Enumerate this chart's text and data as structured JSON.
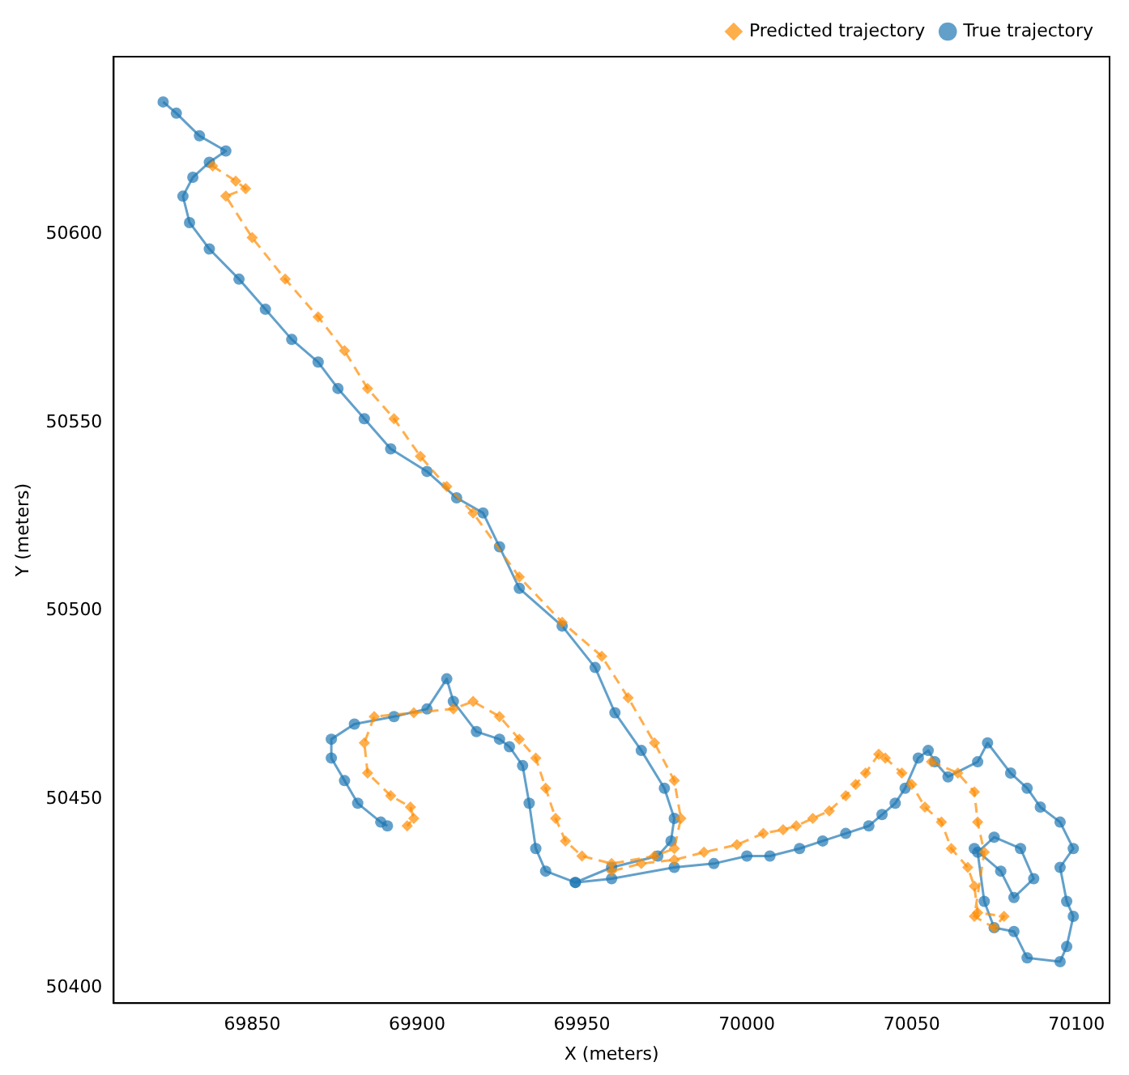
{
  "chart_data": {
    "type": "line",
    "xlabel": "X (meters)",
    "ylabel": "Y (meters)",
    "xlim": [
      69808,
      70110
    ],
    "ylim": [
      50396,
      50647
    ],
    "xticks": [
      69850,
      69900,
      69950,
      70000,
      70050,
      70100
    ],
    "yticks": [
      50400,
      50450,
      50500,
      50550,
      50600
    ],
    "grid": false,
    "legend": "top right",
    "series": [
      {
        "name": "Predicted trajectory",
        "color": "#ff8c00",
        "marker": "diamond",
        "line_style": "dashed",
        "x": [
          69838,
          69845,
          69848,
          69842,
          69850,
          69860,
          69870,
          69878,
          69885,
          69893,
          69901,
          69909,
          69917,
          69931,
          69944,
          69956,
          69964,
          69972,
          69978,
          69980,
          69978,
          69972,
          69959,
          69950,
          69945,
          69942,
          69939,
          69936,
          69931,
          69925,
          69917,
          69911,
          69899,
          69887,
          69884,
          69885,
          69892,
          69898,
          69899,
          69897,
          null,
          70056,
          70064,
          70069,
          70070,
          70072,
          70069,
          70075,
          70078,
          70070,
          70069,
          70067,
          70062,
          70059,
          70054,
          70050,
          70047,
          70042,
          70040,
          70036,
          70033,
          70030,
          70025,
          70020,
          70015,
          70011,
          70005,
          69997,
          69987,
          69978,
          69968,
          69959
        ],
        "values": [
          50618,
          50614,
          50612,
          50610,
          50599,
          50588,
          50578,
          50569,
          50559,
          50551,
          50541,
          50533,
          50526,
          50509,
          50497,
          50488,
          50477,
          50465,
          50455,
          50445,
          50437,
          50435,
          50433,
          50435,
          50439,
          50445,
          50453,
          50461,
          50466,
          50472,
          50476,
          50474,
          50473,
          50472,
          50465,
          50457,
          50451,
          50448,
          50445,
          50443,
          null,
          50460,
          50457,
          50452,
          50444,
          50436,
          50419,
          50416,
          50419,
          50420,
          50427,
          50432,
          50437,
          50444,
          50448,
          50454,
          50457,
          50461,
          50462,
          50457,
          50454,
          50451,
          50447,
          50445,
          50443,
          50442,
          50441,
          50438,
          50436,
          50434,
          50433,
          50431
        ]
      },
      {
        "name": "True trajectory",
        "color": "#1f77b4",
        "marker": "circle",
        "line_style": "solid",
        "x": [
          69823,
          69827,
          69834,
          69842,
          69837,
          69832,
          69829,
          69831,
          69837,
          69846,
          69854,
          69862,
          69870,
          69876,
          69884,
          69892,
          69903,
          69912,
          69920,
          69925,
          69931,
          69944,
          69954,
          69960,
          69968,
          69975,
          69978,
          69977,
          69973,
          69959,
          69948,
          null,
          70069,
          70077,
          70081,
          70087,
          70083,
          70075,
          70070,
          70072,
          70075,
          70081,
          70085,
          70095,
          70097,
          70099,
          70097,
          70095,
          70099,
          70095,
          70089,
          70085,
          70080,
          70073,
          70070,
          70061,
          70057,
          70055,
          70052,
          70048,
          70045,
          70041,
          70037,
          70030,
          70023,
          70016,
          70007,
          70000,
          69990,
          69978,
          69959,
          69948,
          69939,
          69936,
          69934,
          69932,
          69928,
          69925,
          69918,
          69911,
          69909,
          69903,
          69893,
          69881,
          69874,
          69874,
          69878,
          69882,
          69889,
          69891
        ],
        "values": [
          50635,
          50632,
          50626,
          50622,
          50619,
          50615,
          50610,
          50603,
          50596,
          50588,
          50580,
          50572,
          50566,
          50559,
          50551,
          50543,
          50537,
          50530,
          50526,
          50517,
          50506,
          50496,
          50485,
          50473,
          50463,
          50453,
          50445,
          50439,
          50435,
          50432,
          50428,
          null,
          50437,
          50431,
          50424,
          50429,
          50437,
          50440,
          50436,
          50423,
          50416,
          50415,
          50408,
          50407,
          50411,
          50419,
          50423,
          50432,
          50437,
          50444,
          50448,
          50453,
          50457,
          50465,
          50460,
          50456,
          50460,
          50463,
          50461,
          50453,
          50449,
          50446,
          50443,
          50441,
          50439,
          50437,
          50435,
          50435,
          50433,
          50432,
          50429,
          50428,
          50431,
          50437,
          50449,
          50459,
          50464,
          50466,
          50468,
          50476,
          50482,
          50474,
          50472,
          50470,
          50466,
          50461,
          50455,
          50449,
          50444,
          50443
        ]
      }
    ]
  }
}
